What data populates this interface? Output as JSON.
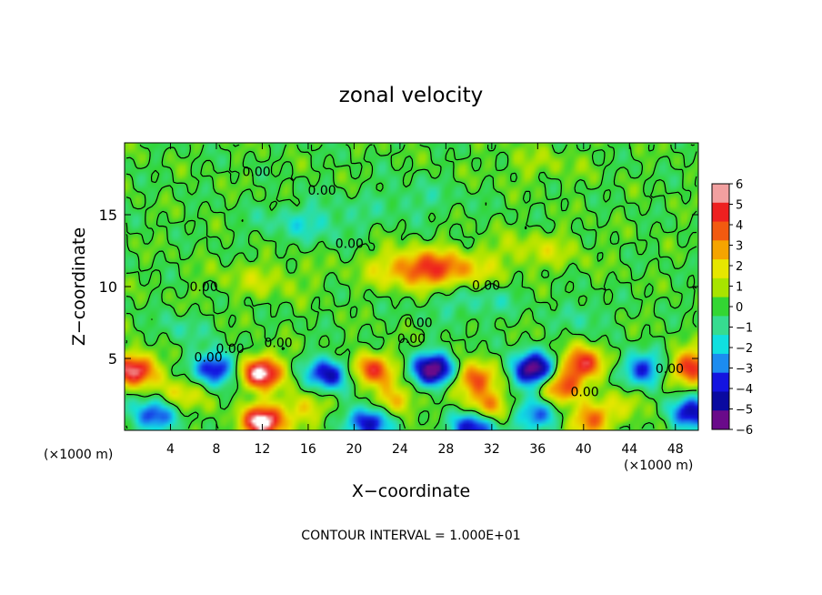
{
  "chart_data": {
    "type": "heatmap",
    "title": "zonal velocity",
    "xlabel": "X−coordinate",
    "ylabel": "Z−coordinate",
    "x_unit_left": "(×1000 m)",
    "x_unit_right": "(×1000 m)",
    "footer": "CONTOUR INTERVAL = 1.000E+01",
    "xlim": [
      0,
      50
    ],
    "ylim": [
      0,
      20
    ],
    "x_ticks": [
      4,
      8,
      12,
      16,
      20,
      24,
      28,
      32,
      36,
      40,
      44,
      48
    ],
    "y_ticks": [
      5,
      10,
      15
    ],
    "colorbar": {
      "ticks": [
        "6",
        "5",
        "4",
        "3",
        "2",
        "1",
        "0",
        "−1",
        "−2",
        "−3",
        "−4",
        "−5",
        "−6"
      ],
      "range": [
        -6,
        6
      ],
      "colors": [
        "#f2a0a0",
        "#ee2020",
        "#f25a10",
        "#f5a400",
        "#e6e600",
        "#a8e400",
        "#33d633",
        "#36dc90",
        "#10e0e0",
        "#1c8cf0",
        "#1414e0",
        "#0a0aa0",
        "#6a0a8a"
      ]
    },
    "contour_labels": [
      {
        "text": "0.00",
        "x": 7.3,
        "z": 5.1
      },
      {
        "text": "0.00",
        "x": 9.2,
        "z": 5.7
      },
      {
        "text": "0.00",
        "x": 13.4,
        "z": 6.1
      },
      {
        "text": "0.00",
        "x": 25.0,
        "z": 6.4
      },
      {
        "text": "0.00",
        "x": 25.6,
        "z": 7.5
      },
      {
        "text": "0.00",
        "x": 6.9,
        "z": 10.0
      },
      {
        "text": "0.00",
        "x": 31.5,
        "z": 10.1
      },
      {
        "text": "0.00",
        "x": 19.6,
        "z": 13.0
      },
      {
        "text": "0.00",
        "x": 17.2,
        "z": 16.7
      },
      {
        "text": "0.00",
        "x": 11.5,
        "z": 18.0
      },
      {
        "text": "0.00",
        "x": 40.1,
        "z": 2.7
      },
      {
        "text": "0.00",
        "x": 47.5,
        "z": 4.3
      }
    ],
    "features": [
      {
        "x": 11.8,
        "z": 4.0,
        "v": 6.5
      },
      {
        "x": 12.0,
        "z": 0.6,
        "v": 6.5
      },
      {
        "x": 0.8,
        "z": 4.2,
        "v": 6
      },
      {
        "x": 27.0,
        "z": 4.2,
        "v": -6.5
      },
      {
        "x": 35.6,
        "z": 4.2,
        "v": -6.5
      },
      {
        "x": 40.0,
        "z": 4.6,
        "v": 5
      },
      {
        "x": 8.0,
        "z": 4.3,
        "v": -4.8
      },
      {
        "x": 17.8,
        "z": 3.9,
        "v": -4.8
      },
      {
        "x": 21.5,
        "z": 4.2,
        "v": 4.6
      },
      {
        "x": 23.5,
        "z": 2.0,
        "v": 3
      },
      {
        "x": 30.5,
        "z": 3.6,
        "v": 4.6
      },
      {
        "x": 31.5,
        "z": 1.6,
        "v": 3.4
      },
      {
        "x": 38.0,
        "z": 3.0,
        "v": 4
      },
      {
        "x": 45.0,
        "z": 4.2,
        "v": -4
      },
      {
        "x": 49.5,
        "z": 4.4,
        "v": 5
      },
      {
        "x": 49.3,
        "z": 1.2,
        "v": -4.5
      },
      {
        "x": 2.5,
        "z": 1.0,
        "v": -4
      },
      {
        "x": 21.5,
        "z": 0.6,
        "v": -5
      },
      {
        "x": 30.5,
        "z": 0.3,
        "v": -5
      },
      {
        "x": 36.0,
        "z": 1.0,
        "v": -3.5
      },
      {
        "x": 40.5,
        "z": 0.7,
        "v": 4
      },
      {
        "x": 5.0,
        "z": 2.5,
        "v": 2.2
      },
      {
        "x": 15.5,
        "z": 1.5,
        "v": 2.2
      },
      {
        "x": 44.0,
        "z": 2.0,
        "v": 1.5
      },
      {
        "x": 25.8,
        "z": 11.3,
        "v": 3.3
      },
      {
        "x": 28.0,
        "z": 11.0,
        "v": 1.8
      },
      {
        "x": 36.0,
        "z": 12.5,
        "v": 1.4
      },
      {
        "x": 12.0,
        "z": 10.5,
        "v": 1.2
      },
      {
        "x": 16.0,
        "z": 14.5,
        "v": -1.6
      },
      {
        "x": 30.0,
        "z": 9.0,
        "v": -1.3
      },
      {
        "x": 40.0,
        "z": 8.0,
        "v": -1.2
      },
      {
        "x": 25.0,
        "z": 16.0,
        "v": -0.9
      },
      {
        "x": 5.0,
        "z": 7.0,
        "v": -1.1
      },
      {
        "x": 36.0,
        "z": 18.5,
        "v": 0.8
      }
    ]
  }
}
